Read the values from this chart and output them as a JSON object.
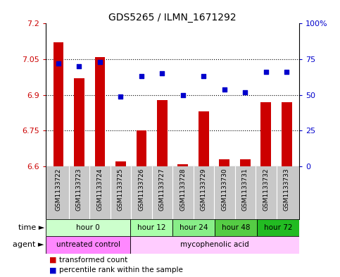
{
  "title": "GDS5265 / ILMN_1671292",
  "samples": [
    "GSM1133722",
    "GSM1133723",
    "GSM1133724",
    "GSM1133725",
    "GSM1133726",
    "GSM1133727",
    "GSM1133728",
    "GSM1133729",
    "GSM1133730",
    "GSM1133731",
    "GSM1133732",
    "GSM1133733"
  ],
  "transformed_count": [
    7.12,
    6.97,
    7.06,
    6.62,
    6.75,
    6.88,
    6.61,
    6.83,
    6.63,
    6.63,
    6.87,
    6.87
  ],
  "percentile_rank": [
    72,
    70,
    73,
    49,
    63,
    65,
    50,
    63,
    54,
    52,
    66,
    66
  ],
  "ylim_left": [
    6.6,
    7.2
  ],
  "ylim_right": [
    0,
    100
  ],
  "yticks_left": [
    6.6,
    6.75,
    6.9,
    7.05,
    7.2
  ],
  "yticks_right": [
    0,
    25,
    50,
    75,
    100
  ],
  "bar_color": "#cc0000",
  "dot_color": "#0000cc",
  "bar_bottom": 6.6,
  "time_colors": [
    "#ccffcc",
    "#aaffaa",
    "#88ee88",
    "#55cc44",
    "#22bb22"
  ],
  "agent_colors": [
    "#ff88ff",
    "#ffccff"
  ],
  "time_groups": [
    {
      "label": "hour 0",
      "start": 0,
      "end": 3
    },
    {
      "label": "hour 12",
      "start": 4,
      "end": 5
    },
    {
      "label": "hour 24",
      "start": 6,
      "end": 7
    },
    {
      "label": "hour 48",
      "start": 8,
      "end": 9
    },
    {
      "label": "hour 72",
      "start": 10,
      "end": 11
    }
  ],
  "agent_groups": [
    {
      "label": "untreated control",
      "start": 0,
      "end": 3
    },
    {
      "label": "mycophenolic acid",
      "start": 4,
      "end": 11
    }
  ],
  "legend_red_label": "transformed count",
  "legend_blue_label": "percentile rank within the sample",
  "time_label": "time",
  "agent_label": "agent",
  "xlabel_bg": "#c8c8c8",
  "grid_linestyle": ":",
  "grid_linewidth": 0.8
}
